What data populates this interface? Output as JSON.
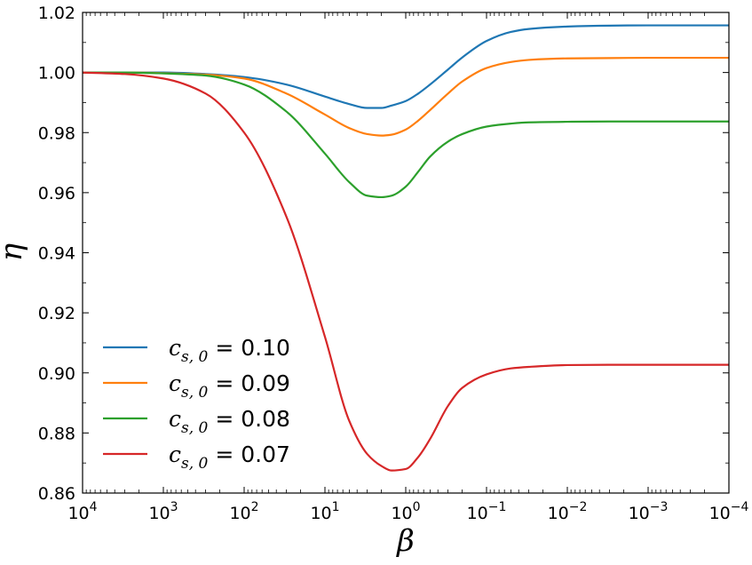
{
  "chart_data": {
    "type": "line",
    "title": "",
    "xlabel": "β",
    "ylabel": "η",
    "x_scale": "log",
    "x_reversed": true,
    "xlim": [
      10000,
      0.0001
    ],
    "ylim": [
      0.86,
      1.02
    ],
    "x_ticks": [
      {
        "value": 10000,
        "base": "10",
        "exp": "4"
      },
      {
        "value": 1000,
        "base": "10",
        "exp": "3"
      },
      {
        "value": 100,
        "base": "10",
        "exp": "2"
      },
      {
        "value": 10,
        "base": "10",
        "exp": "1"
      },
      {
        "value": 1,
        "base": "10",
        "exp": "0"
      },
      {
        "value": 0.1,
        "base": "10",
        "exp": "−1"
      },
      {
        "value": 0.01,
        "base": "10",
        "exp": "−2"
      },
      {
        "value": 0.001,
        "base": "10",
        "exp": "−3"
      },
      {
        "value": 0.0001,
        "base": "10",
        "exp": "−4"
      }
    ],
    "y_ticks": [
      "0.86",
      "0.88",
      "0.90",
      "0.92",
      "0.94",
      "0.96",
      "0.98",
      "1.00",
      "1.02"
    ],
    "grid": false,
    "legend_position": "bottom-left",
    "x": [
      10000,
      3000,
      1000,
      300,
      100,
      30,
      10,
      5,
      3,
      2,
      1.5,
      1,
      0.7,
      0.5,
      0.3,
      0.2,
      0.1,
      0.05,
      0.03,
      0.01,
      0.003,
      0.001,
      0.0001
    ],
    "series": [
      {
        "name": "c_{s,0} = 0.10",
        "legend_sym": "c",
        "legend_sub": "s, 0",
        "legend_val": " = 0.10",
        "color": "#1f77b4",
        "values": [
          1.0,
          1.0,
          1.0,
          0.9995,
          0.9985,
          0.996,
          0.992,
          0.9895,
          0.9882,
          0.9882,
          0.989,
          0.9905,
          0.993,
          0.996,
          1.001,
          1.005,
          1.0105,
          1.0135,
          1.0145,
          1.0153,
          1.0156,
          1.0157,
          1.0157
        ]
      },
      {
        "name": "c_{s,0} = 0.09",
        "legend_sym": "c",
        "legend_sub": "s, 0",
        "legend_val": " = 0.09",
        "color": "#ff7f0e",
        "values": [
          1.0,
          1.0,
          0.9998,
          0.9993,
          0.998,
          0.993,
          0.986,
          0.9815,
          0.9795,
          0.979,
          0.9793,
          0.981,
          0.984,
          0.9875,
          0.993,
          0.997,
          1.0015,
          1.0035,
          1.0042,
          1.0047,
          1.0048,
          1.0049,
          1.0049
        ]
      },
      {
        "name": "c_{s,0} = 0.08",
        "legend_sym": "c",
        "legend_sub": "s, 0",
        "legend_val": " = 0.08",
        "color": "#2ca02c",
        "values": [
          1.0,
          1.0,
          0.9997,
          0.999,
          0.996,
          0.987,
          0.973,
          0.9635,
          0.959,
          0.9585,
          0.959,
          0.962,
          0.967,
          0.972,
          0.977,
          0.9795,
          0.982,
          0.983,
          0.9834,
          0.9836,
          0.9837,
          0.9837,
          0.9837
        ]
      },
      {
        "name": "c_{s,0} = 0.07",
        "legend_sym": "c",
        "legend_sub": "s, 0",
        "legend_val": " = 0.07",
        "color": "#d62728",
        "values": [
          1.0,
          0.9995,
          0.998,
          0.993,
          0.98,
          0.952,
          0.912,
          0.884,
          0.873,
          0.869,
          0.8675,
          0.868,
          0.872,
          0.878,
          0.889,
          0.895,
          0.8995,
          0.9015,
          0.902,
          0.9026,
          0.9027,
          0.9027,
          0.9027
        ]
      }
    ]
  }
}
